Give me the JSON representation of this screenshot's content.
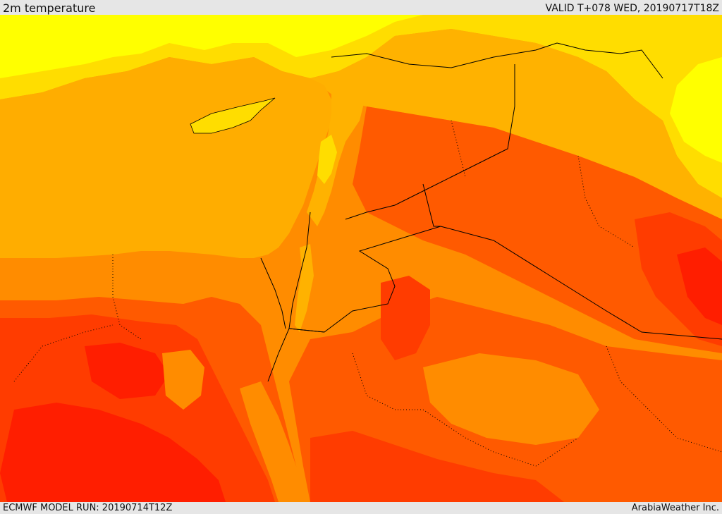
{
  "header": {
    "title": "2m temperature",
    "valid_time": "VALID T+078 WED, 20190717T18Z"
  },
  "footer": {
    "model_run": "ECMWF MODEL RUN: 20190714T12Z",
    "credit": "ArabiaWeather Inc."
  },
  "map": {
    "field": "2m temperature",
    "palette": {
      "sea": "#ffad00",
      "yellow": "#ffff00",
      "yellow_orange": "#ffdd00",
      "light_orange": "#ffb200",
      "orange": "#ff8c00",
      "dark_orange": "#ff5a00",
      "red_orange": "#ff3c00",
      "red": "#ff1e00",
      "border": "#000000"
    }
  }
}
